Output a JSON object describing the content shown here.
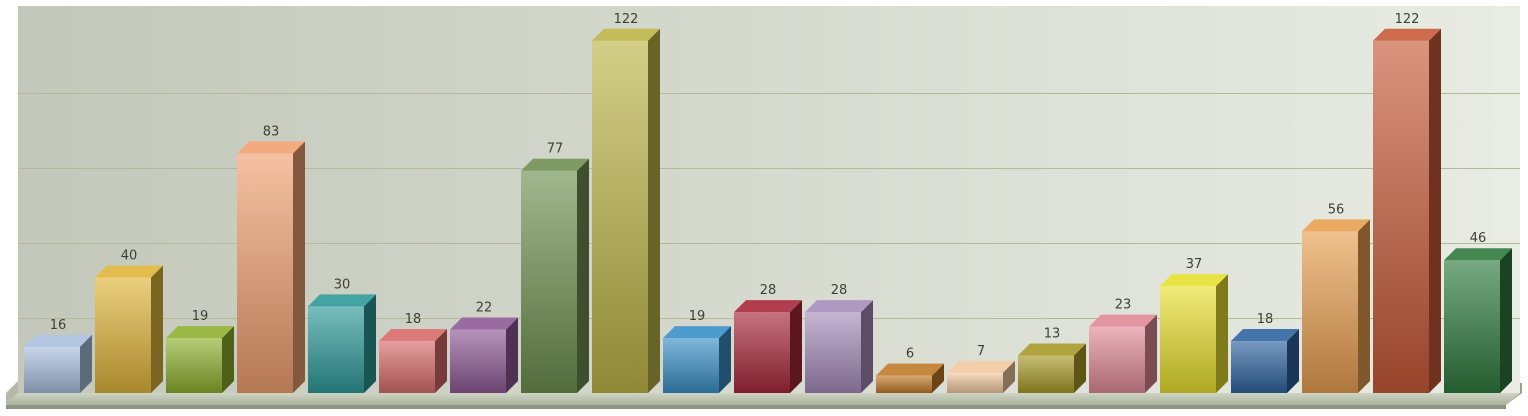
{
  "chart_data": {
    "type": "bar",
    "style": "3d-columns",
    "categories": [
      "",
      "",
      "",
      "",
      "",
      "",
      "",
      "",
      "",
      "",
      "",
      "",
      "",
      "",
      "",
      "",
      "",
      "",
      "",
      "",
      ""
    ],
    "values": [
      16,
      40,
      19,
      83,
      30,
      18,
      22,
      77,
      122,
      19,
      28,
      28,
      6,
      7,
      13,
      23,
      37,
      18,
      56,
      122,
      46
    ],
    "data_labels": [
      "16",
      "40",
      "19",
      "83",
      "30",
      "18",
      "22",
      "77",
      "122",
      "19",
      "28",
      "28",
      "6",
      "7",
      "13",
      "23",
      "37",
      "18",
      "56",
      "122",
      "46"
    ],
    "colors": [
      "#a9c0de",
      "#e0b53a",
      "#8fb02e",
      "#f0a070",
      "#2f9a9a",
      "#d96c6c",
      "#8f5a96",
      "#6f9050",
      "#bdb548",
      "#3a90c8",
      "#a8283a",
      "#a68cba",
      "#c07a28",
      "#f0c8a0",
      "#a89a28",
      "#e08a96",
      "#e8e030",
      "#2f64a0",
      "#e8a050",
      "#c85a38",
      "#2f7a3e"
    ],
    "ylim": [
      0,
      128
    ],
    "gridlines": [
      0,
      26,
      52,
      78,
      104
    ],
    "grid": true,
    "legend": "none",
    "title": "",
    "xlabel": "",
    "ylabel": ""
  }
}
